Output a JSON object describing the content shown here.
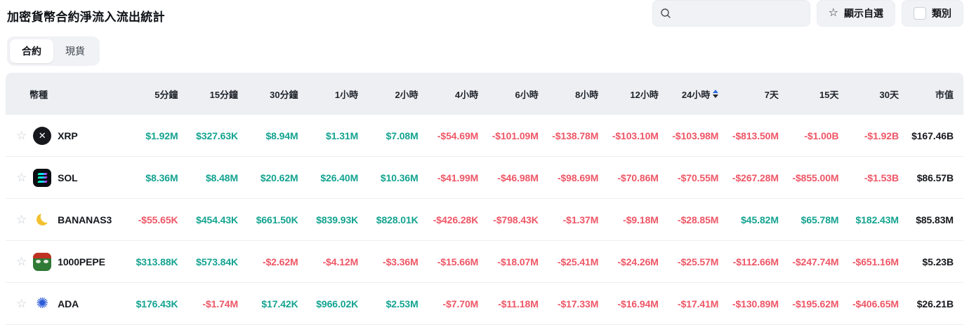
{
  "page": {
    "title": "加密貨幣合約淨流入流出統計"
  },
  "toolbar": {
    "search": {
      "value": "",
      "icon": "search-icon"
    },
    "favorites_button": {
      "label": "顯示自選",
      "icon": "star-icon"
    },
    "category_button": {
      "label": "類別",
      "icon": "checkbox",
      "checked": false
    }
  },
  "tabs": [
    {
      "label": "合約",
      "active": true
    },
    {
      "label": "現貨",
      "active": false
    }
  ],
  "table": {
    "columns": [
      "幣種",
      "5分鐘",
      "15分鐘",
      "30分鐘",
      "1小時",
      "2小時",
      "4小時",
      "6小時",
      "8小時",
      "12小時",
      "24小時",
      "7天",
      "15天",
      "30天",
      "市值"
    ],
    "sorted_column": "24小時",
    "rows": [
      {
        "symbol": "XRP",
        "icon": "xrp",
        "values": [
          "$1.92M",
          "$327.63K",
          "$8.94M",
          "$1.31M",
          "$7.08M",
          "-$54.69M",
          "-$101.09M",
          "-$138.78M",
          "-$103.10M",
          "-$103.98M",
          "-$813.50M",
          "-$1.00B",
          "-$1.92B"
        ],
        "market_cap": "$167.46B"
      },
      {
        "symbol": "SOL",
        "icon": "sol",
        "values": [
          "$8.36M",
          "$8.48M",
          "$20.62M",
          "$26.40M",
          "$10.36M",
          "-$41.99M",
          "-$46.98M",
          "-$98.69M",
          "-$70.86M",
          "-$70.55M",
          "-$267.28M",
          "-$855.00M",
          "-$1.53B"
        ],
        "market_cap": "$86.57B"
      },
      {
        "symbol": "BANANAS31",
        "icon": "bananas31",
        "values": [
          "-$55.65K",
          "$454.43K",
          "$661.50K",
          "$839.93K",
          "$828.01K",
          "-$426.28K",
          "-$798.43K",
          "-$1.37M",
          "-$9.18M",
          "-$28.85M",
          "$45.82M",
          "$65.78M",
          "$182.43M"
        ],
        "market_cap": "$85.83M"
      },
      {
        "symbol": "1000PEPE",
        "icon": "1000pepe",
        "values": [
          "$313.88K",
          "$573.84K",
          "-$2.62M",
          "-$4.12M",
          "-$3.36M",
          "-$15.66M",
          "-$18.07M",
          "-$25.41M",
          "-$24.26M",
          "-$25.57M",
          "-$112.66M",
          "-$247.74M",
          "-$651.16M"
        ],
        "market_cap": "$5.23B"
      },
      {
        "symbol": "ADA",
        "icon": "ada",
        "values": [
          "$176.43K",
          "-$1.74M",
          "$17.42K",
          "$966.02K",
          "$2.53M",
          "-$7.70M",
          "-$11.18M",
          "-$17.33M",
          "-$16.94M",
          "-$17.41M",
          "-$130.89M",
          "-$195.62M",
          "-$406.65M"
        ],
        "market_cap": "$26.21B"
      }
    ]
  },
  "colors": {
    "positive": "#14a390",
    "negative": "#ee5666",
    "sort_arrow_up": "#2f6be0",
    "sort_arrow_down": "#20242b",
    "header_background": "#edeff2"
  }
}
